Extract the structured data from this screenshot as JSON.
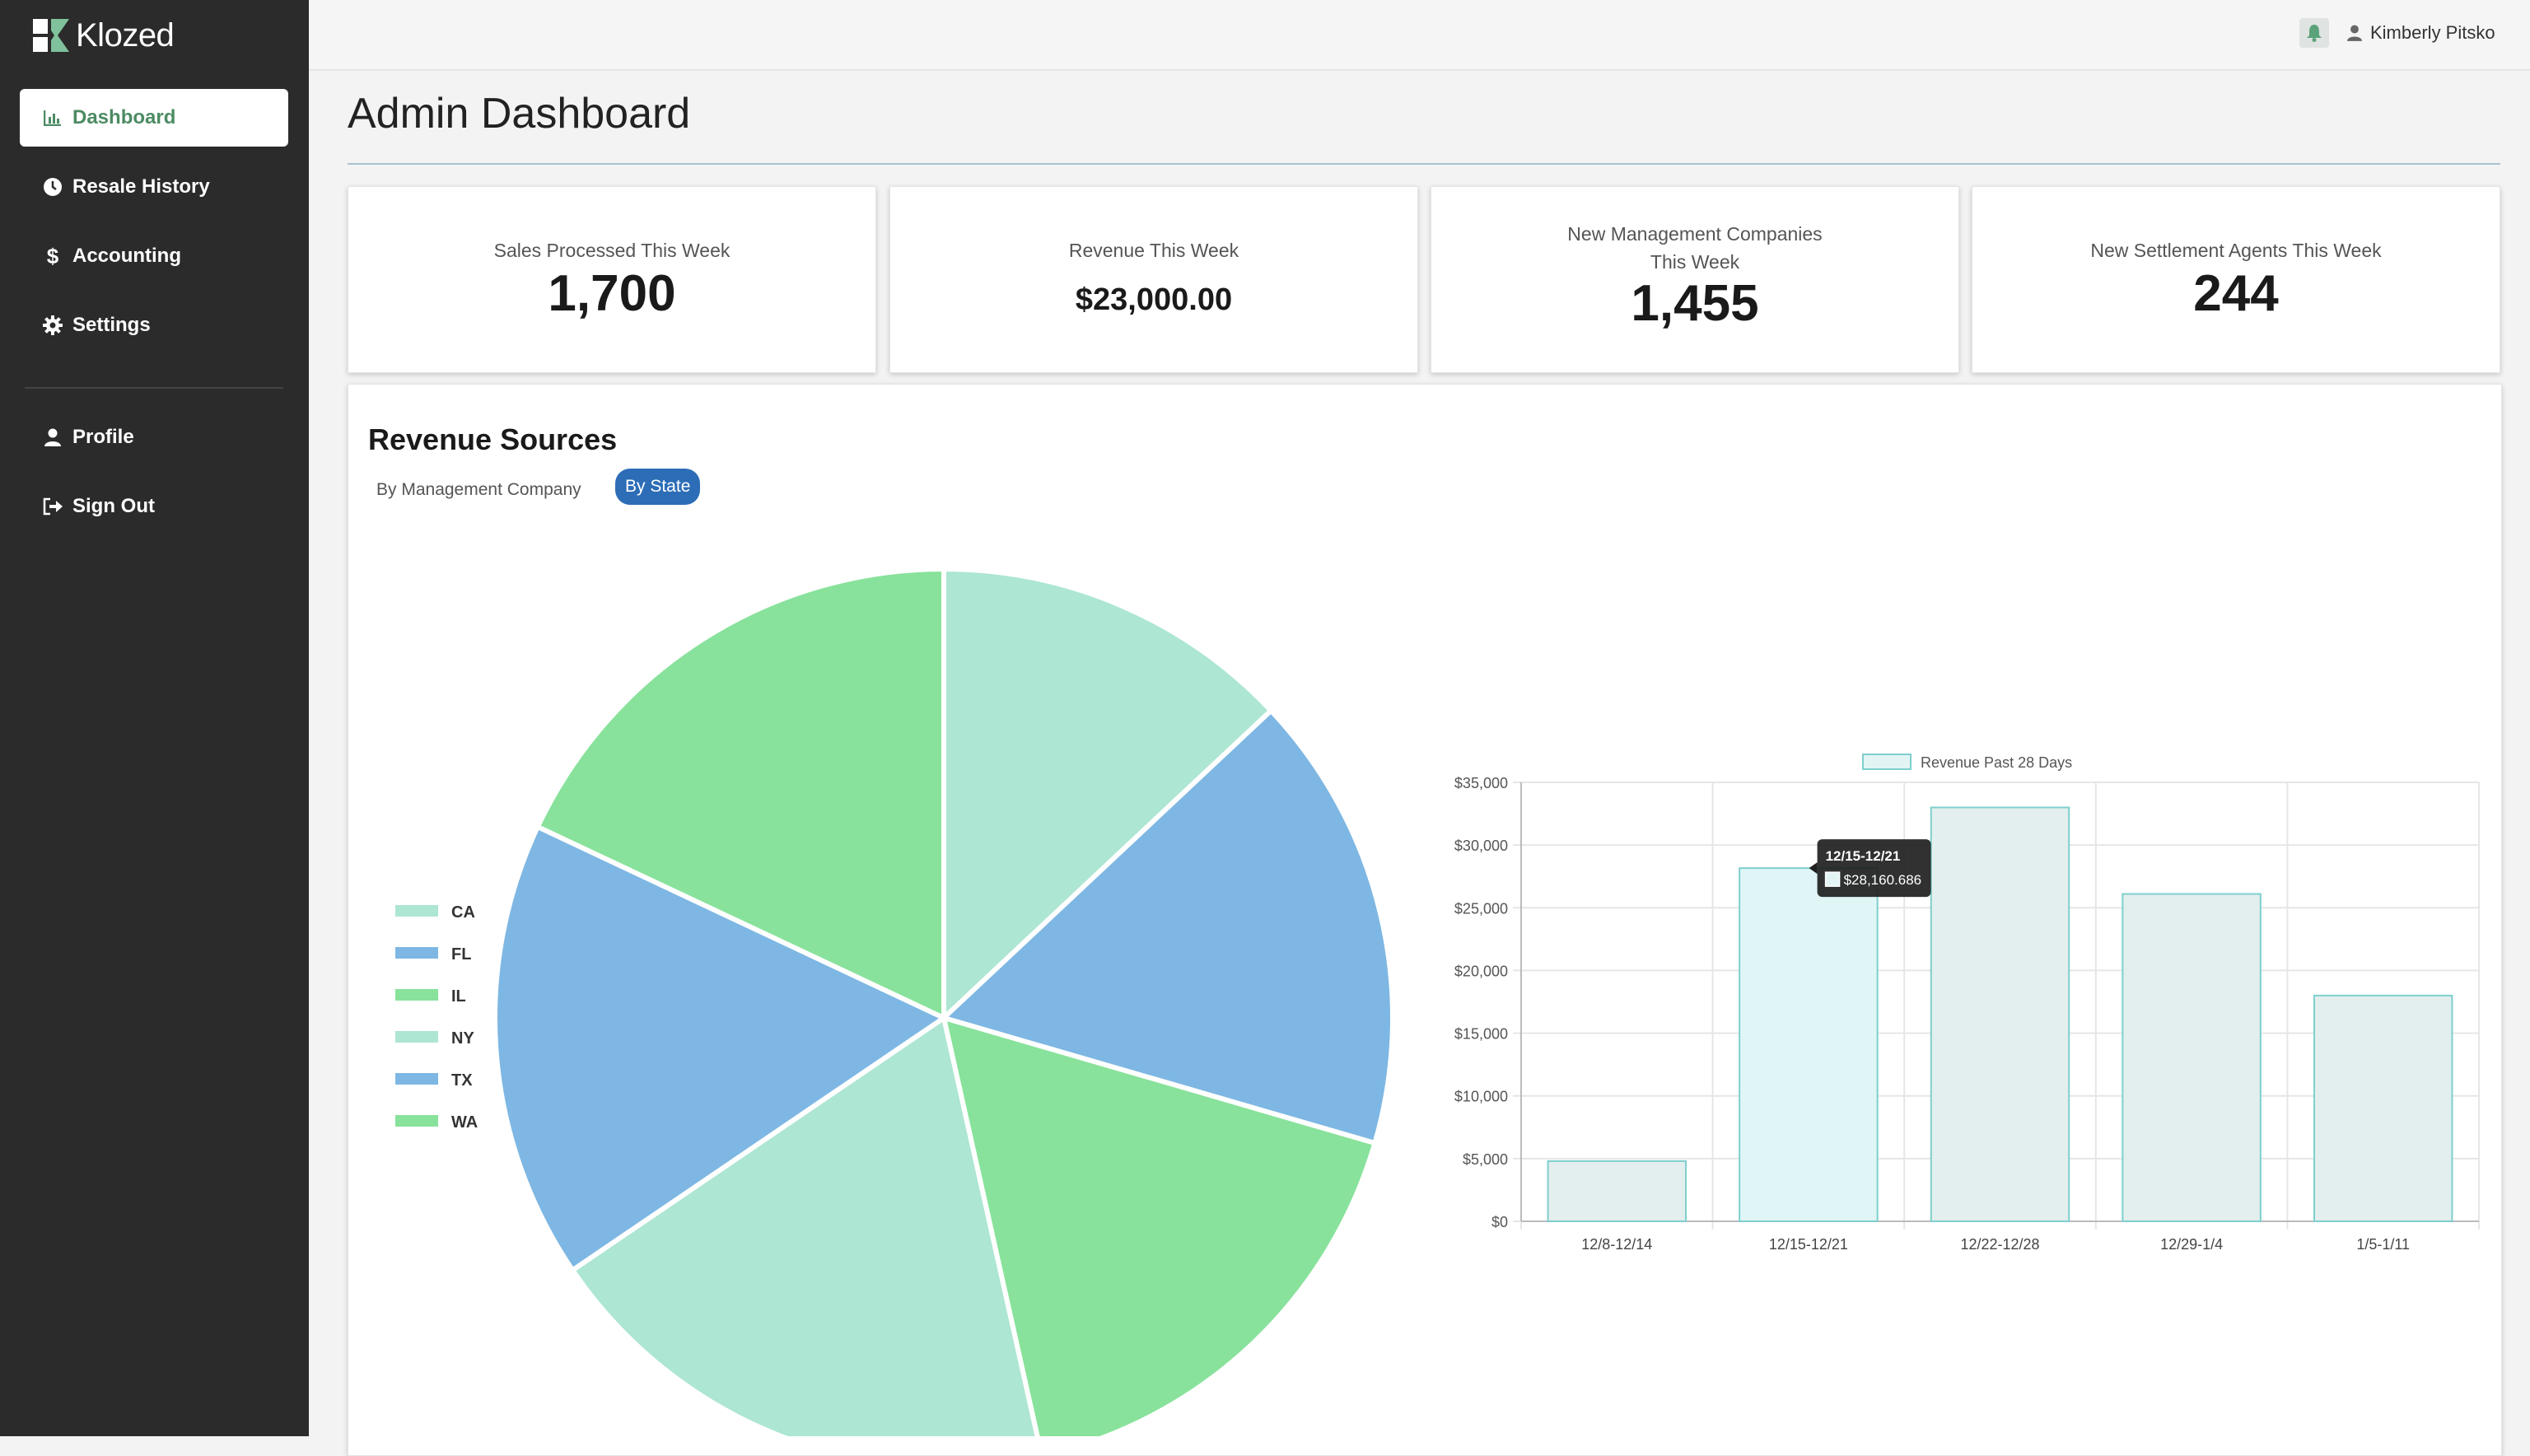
{
  "app": {
    "name": "Klozed"
  },
  "sidebar": {
    "items": [
      {
        "label": "Dashboard",
        "icon": "bar-chart-icon",
        "active": true
      },
      {
        "label": "Resale History",
        "icon": "clock-icon"
      },
      {
        "label": "Accounting",
        "icon": "dollar-icon"
      },
      {
        "label": "Settings",
        "icon": "gear-icon"
      },
      {
        "label": "Profile",
        "icon": "user-icon"
      },
      {
        "label": "Sign Out",
        "icon": "sign-out-icon"
      }
    ]
  },
  "header": {
    "user_name": "Kimberly Pitsko"
  },
  "page": {
    "title": "Admin Dashboard"
  },
  "stats": [
    {
      "label": "Sales Processed This Week",
      "value": "1,700"
    },
    {
      "label": "Revenue This Week",
      "value": "$23,000.00"
    },
    {
      "label_line1": "New Management Companies",
      "label_line2": "This Week",
      "value": "1,455"
    },
    {
      "label": "New Settlement Agents This Week",
      "value": "244"
    }
  ],
  "revenue_panel": {
    "title": "Revenue Sources",
    "toggles": [
      "By Management Company",
      "By State"
    ],
    "active_toggle": "By State"
  },
  "colors": {
    "mint": "#ade6d2",
    "blue": "#7eb7e3",
    "green": "#88e29b",
    "bar_fill": "#e3f4f4",
    "bar_stroke": "#7ecfcd",
    "accent": "#2d6db7",
    "brand": "#4c8b63"
  },
  "chart_data": [
    {
      "type": "pie",
      "labels": [
        "CA",
        "FL",
        "IL",
        "NY",
        "TX",
        "WA"
      ],
      "values": [
        13,
        16.5,
        17,
        19,
        16.5,
        18
      ],
      "colors": [
        "#ade6d2",
        "#7eb7e3",
        "#88e29b",
        "#ade6d2",
        "#7eb7e3",
        "#88e29b"
      ],
      "legend": "left"
    },
    {
      "type": "bar",
      "categories": [
        "12/8-12/14",
        "12/15-12/21",
        "12/22-12/28",
        "12/29-1/4",
        "1/5-1/11"
      ],
      "series": [
        {
          "name": "Revenue Past 28 Days",
          "values": [
            4800,
            28160.686,
            33000,
            26100,
            18000
          ]
        }
      ],
      "ylim": [
        0,
        35000
      ],
      "yticks": [
        "$0",
        "$5,000",
        "$10,000",
        "$15,000",
        "$20,000",
        "$25,000",
        "$30,000",
        "$35,000"
      ],
      "grid": true,
      "legend": "top",
      "tooltip": {
        "title": "12/15-12/21",
        "value": "$28,160.686"
      }
    }
  ]
}
